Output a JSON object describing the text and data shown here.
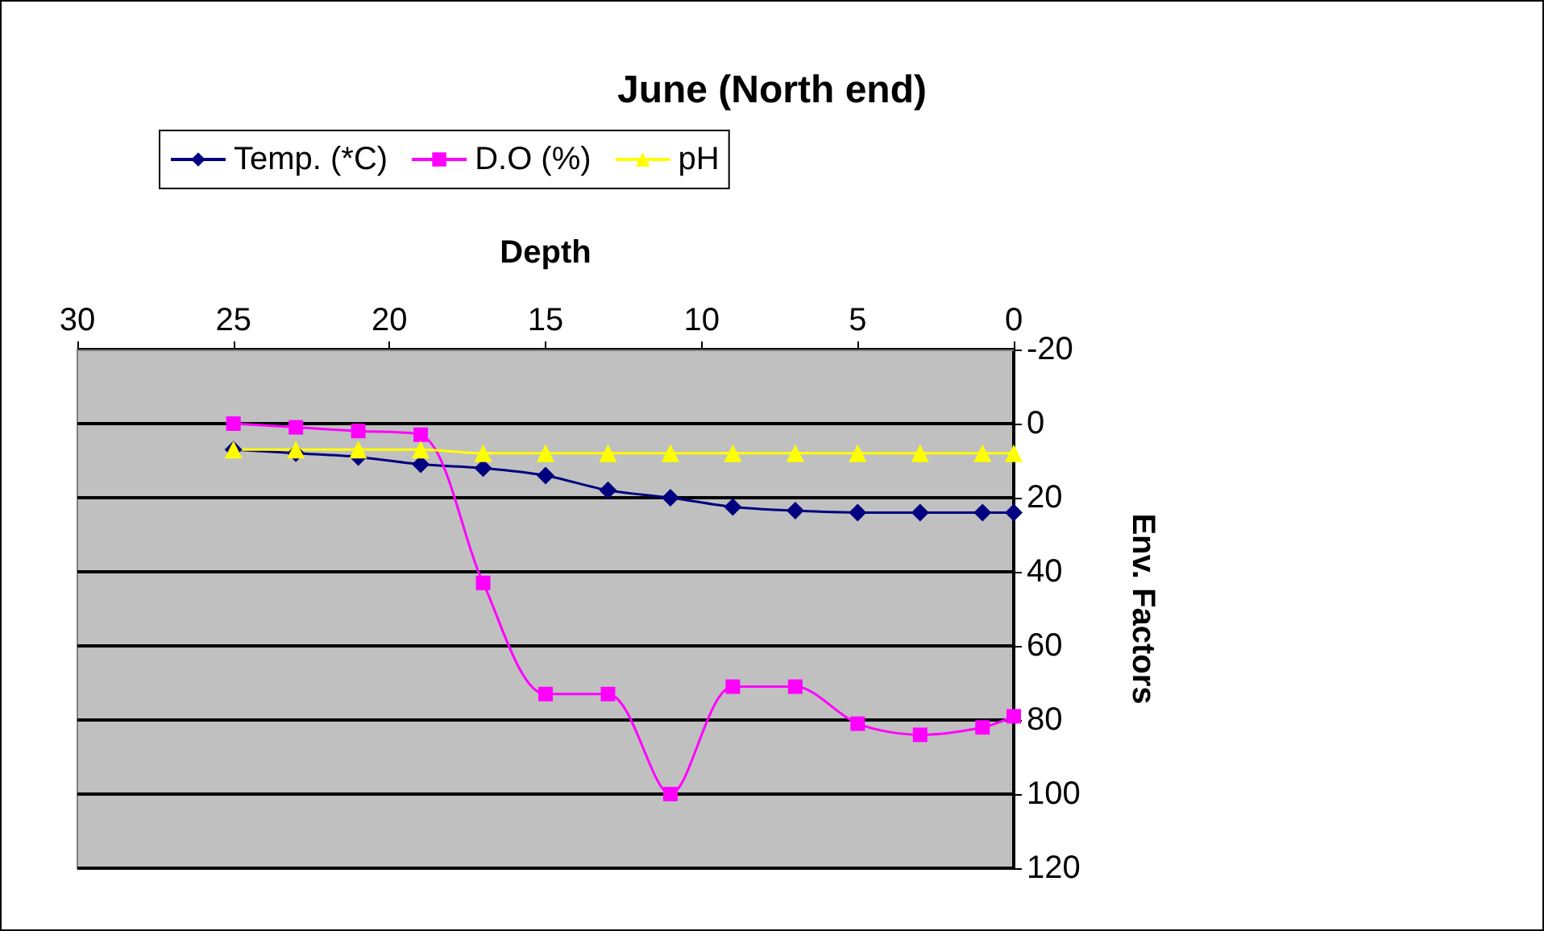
{
  "chart_data": {
    "type": "line",
    "title": "June (North end)",
    "xlabel": "Depth",
    "ylabel": "Env. Factors",
    "x": [
      25,
      23,
      21,
      19,
      17,
      15,
      13,
      11,
      9,
      7,
      5,
      3,
      1,
      0
    ],
    "series": [
      {
        "name": "Temp. (*C)",
        "color": "#000080",
        "marker": "diamond",
        "values": [
          7,
          8,
          9,
          11,
          12,
          14,
          18,
          20,
          22.5,
          23.5,
          24,
          24,
          24,
          24
        ]
      },
      {
        "name": "D.O (%)",
        "color": "#ff00ff",
        "marker": "square",
        "values": [
          0,
          1,
          2,
          3,
          43,
          73,
          73,
          100,
          71,
          71,
          81,
          84,
          82,
          79
        ]
      },
      {
        "name": "pH",
        "color": "#ffff00",
        "marker": "triangle",
        "values": [
          7,
          7,
          7,
          7,
          8,
          8,
          8,
          8,
          8,
          8,
          8,
          8,
          8,
          8
        ]
      }
    ],
    "xlim": [
      30,
      0
    ],
    "xticks": [
      30,
      25,
      20,
      15,
      10,
      5,
      0
    ],
    "ylim": [
      120,
      -20
    ],
    "yticks": [
      -20,
      0,
      20,
      40,
      60,
      80,
      100,
      120
    ],
    "grid": "y",
    "legend": "top left",
    "line_style": "solid"
  }
}
